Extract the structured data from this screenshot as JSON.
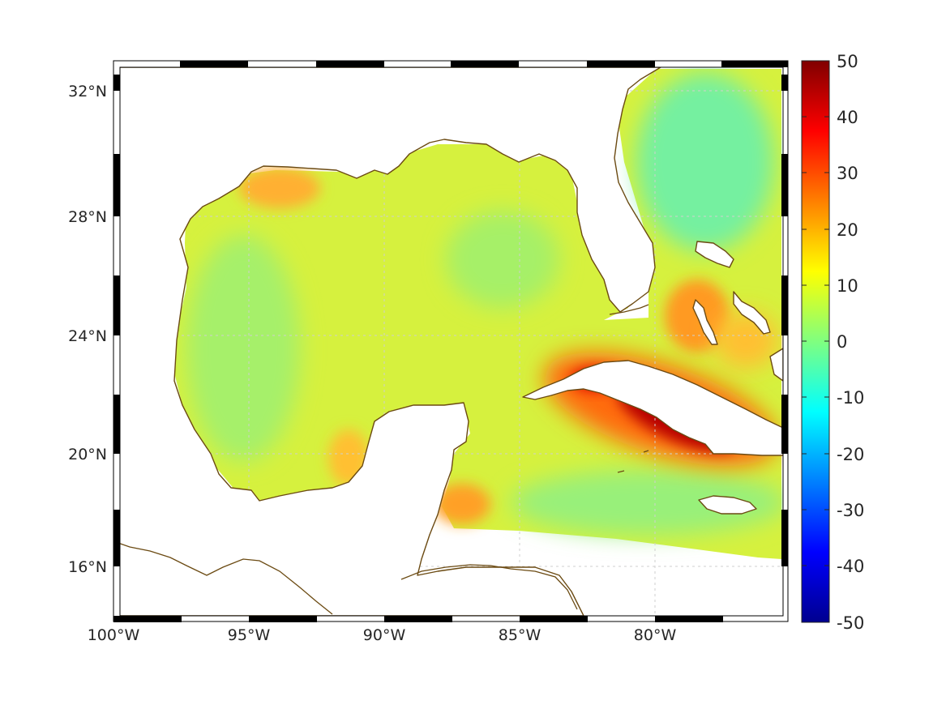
{
  "map": {
    "longitude_ticks": [
      "100°W",
      "95°W",
      "90°W",
      "85°W",
      "80°W"
    ],
    "latitude_ticks": [
      "32°N",
      "28°N",
      "24°N",
      "20°N",
      "16°N"
    ],
    "extent": {
      "lon_min": -100,
      "lon_max": -75.1,
      "lat_min": 14.3,
      "lat_max": 33
    },
    "grid": true,
    "field_range": [
      -50,
      50
    ],
    "colormap": "jet"
  },
  "colorbar": {
    "tick_labels": [
      "50",
      "40",
      "30",
      "20",
      "10",
      "0",
      "-10",
      "-20",
      "-30",
      "-40",
      "-50"
    ],
    "min": -50,
    "max": 50,
    "colors": [
      "#00008f",
      "#0000ff",
      "#00ffff",
      "#ffff00",
      "#ff0000",
      "#800000"
    ]
  },
  "colors": {
    "coastline": "#6b4a12",
    "field_base": "#d8f23c",
    "high_anomaly": "#b80000"
  }
}
